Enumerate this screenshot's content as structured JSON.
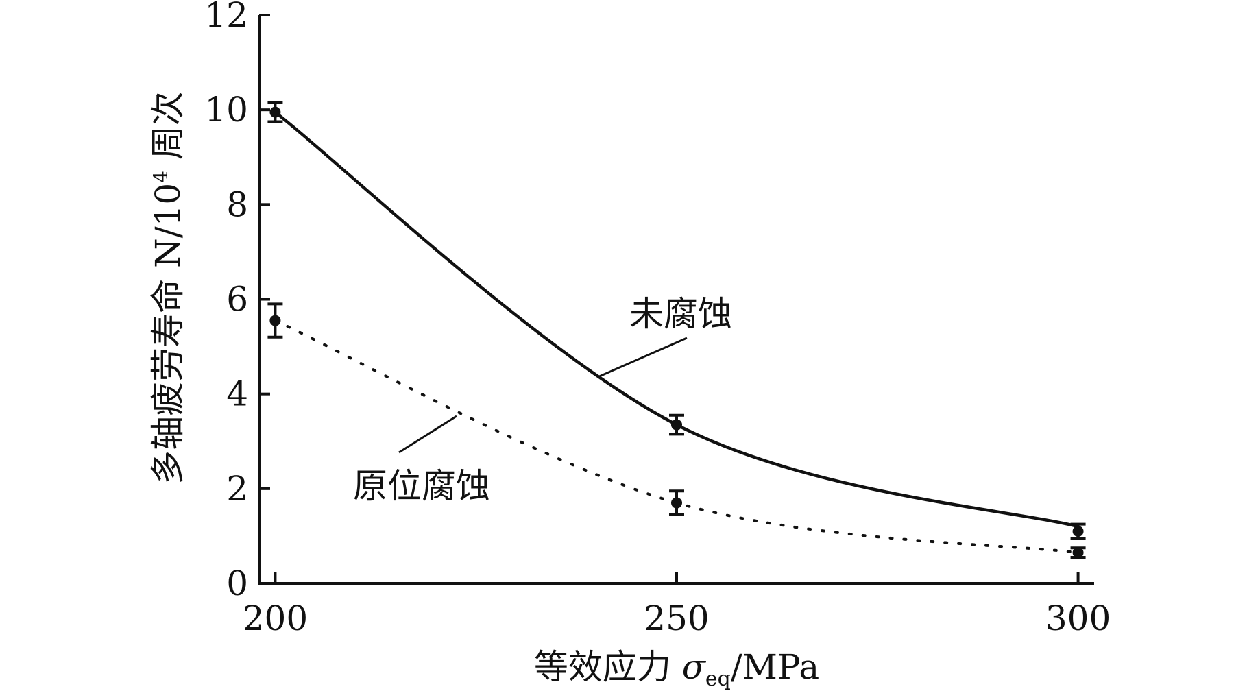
{
  "chart_data": {
    "type": "line",
    "x": [
      200,
      250,
      300
    ],
    "xlim": [
      198,
      302
    ],
    "ylim": [
      0,
      12
    ],
    "xticks": [
      "200",
      "250",
      "300"
    ],
    "yticks": [
      "0",
      "2",
      "4",
      "6",
      "8",
      "10",
      "12"
    ],
    "xlabel": {
      "prefix": "等效应力 ",
      "symbol": "σ",
      "subscript": "eq",
      "suffix": "/MPa"
    },
    "ylabel": {
      "main": "多轴疲劳寿命 N/10",
      "superscript": "4",
      "suffix": " 周次"
    },
    "series": [
      {
        "name": "未腐蚀",
        "style": "solid",
        "values": [
          9.95,
          3.35,
          1.1
        ],
        "error": [
          0.2,
          0.2,
          0.15
        ],
        "curve_end": 1.2
      },
      {
        "name": "原位腐蚀",
        "style": "dotted",
        "values": [
          5.55,
          1.7,
          0.65
        ],
        "error": [
          0.35,
          0.25,
          0.1
        ],
        "curve_end": 0.65
      }
    ],
    "grid": false,
    "legend": "annotations"
  }
}
